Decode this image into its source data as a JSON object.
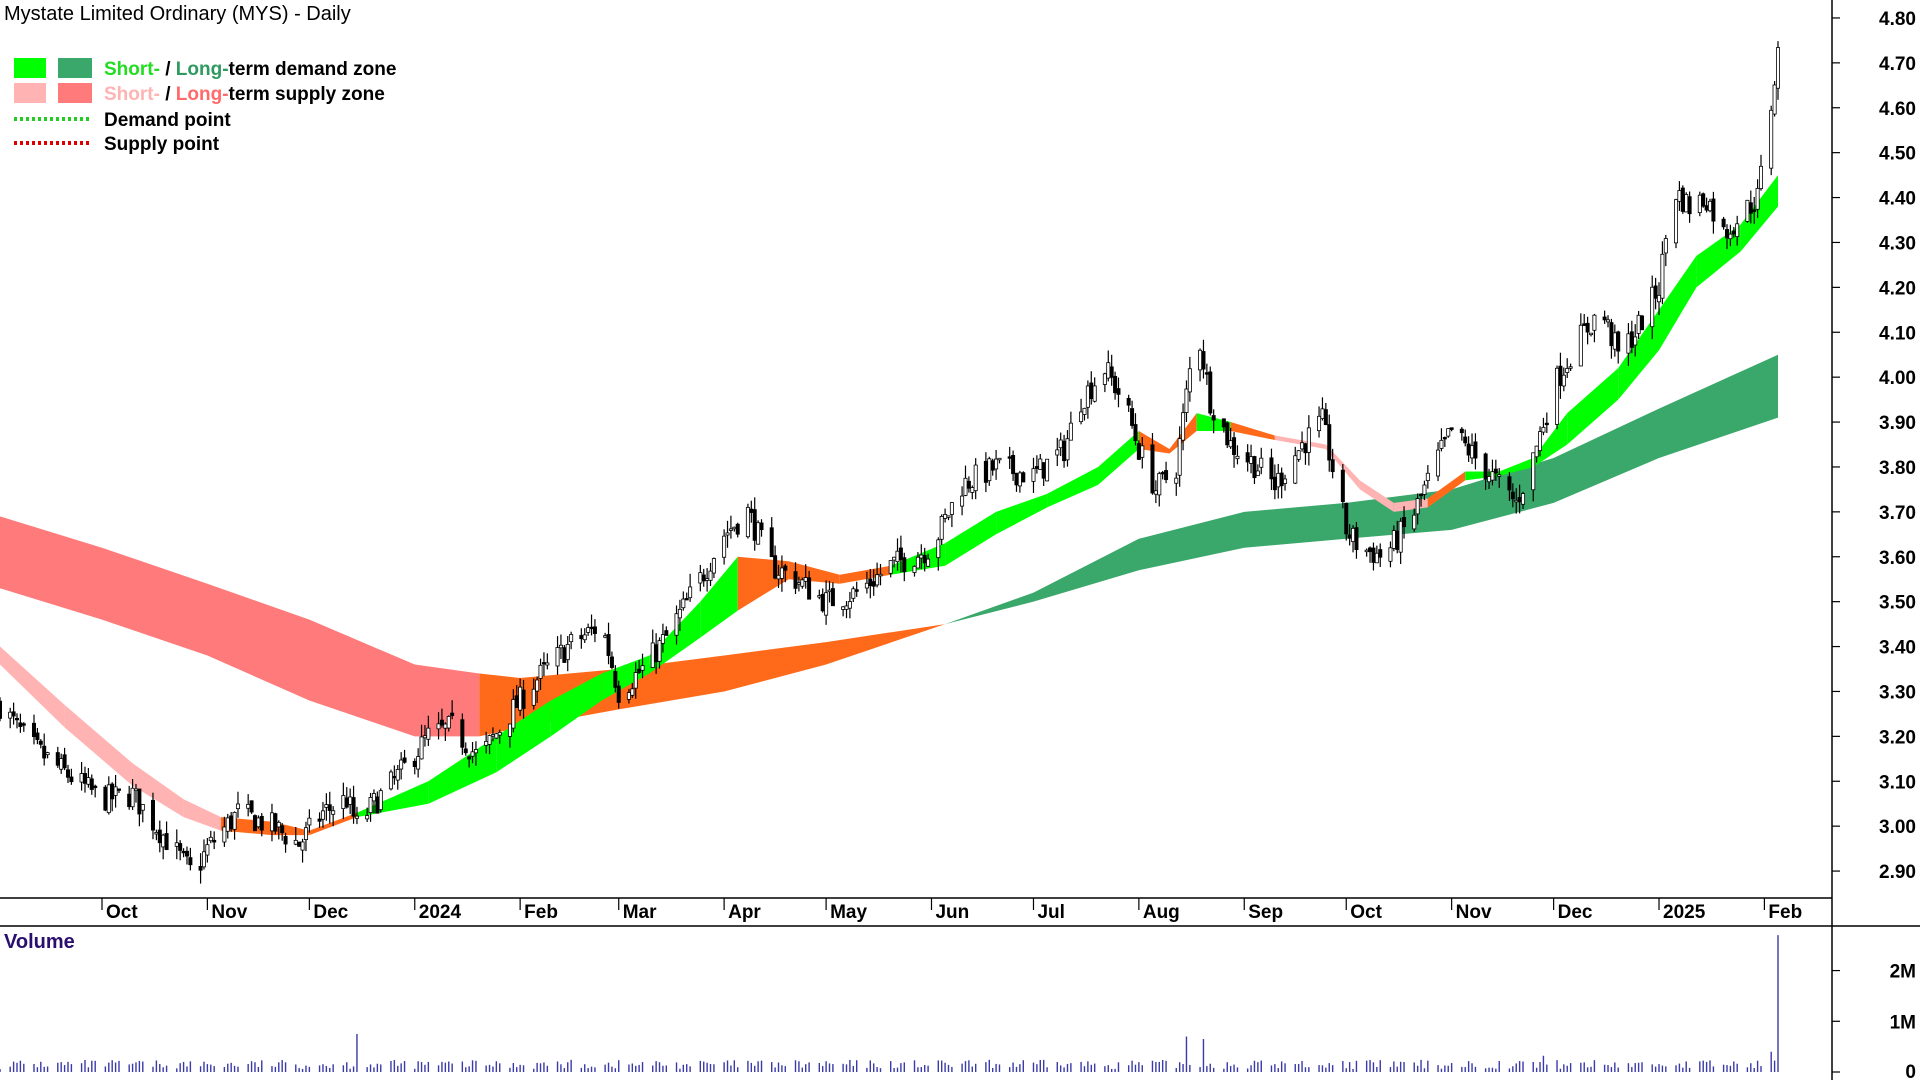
{
  "title": "Mystate Limited Ordinary (MYS) - Daily",
  "legend": {
    "demand_zone": {
      "short": "Short-",
      "sep": " / ",
      "long": "Long-",
      "rest": "term demand zone"
    },
    "supply_zone": {
      "short": "Short-",
      "sep": " / ",
      "long": "Long-",
      "rest": "term supply zone"
    },
    "demand_point": "Demand point",
    "supply_point": "Supply point"
  },
  "colors": {
    "short_demand": "#00ff00",
    "long_demand": "#3aa86b",
    "short_supply": "#ffb3b3",
    "long_supply": "#ff7a7a",
    "overlap": "#ff6a1a",
    "demand_point": "#22cc22",
    "supply_point": "#dd0000",
    "volume": "#3a3aa8"
  },
  "volume_panel": {
    "label": "Volume",
    "ticks": [
      "2M",
      "1M",
      "0"
    ],
    "tick_values": [
      2000000,
      1000000,
      0
    ],
    "max": 2800000
  },
  "chart_data": {
    "type": "candlestick",
    "ylim": [
      2.84,
      4.84
    ],
    "y_ticks": [
      2.9,
      3.0,
      3.1,
      3.2,
      3.3,
      3.4,
      3.5,
      3.6,
      3.7,
      3.8,
      3.9,
      4.0,
      4.1,
      4.2,
      4.3,
      4.4,
      4.5,
      4.6,
      4.7,
      4.8
    ],
    "y_tick_labels": [
      "2.90",
      "3.00",
      "3.10",
      "3.20",
      "3.30",
      "3.40",
      "3.50",
      "3.60",
      "3.70",
      "3.80",
      "3.90",
      "4.00",
      "4.10",
      "4.20",
      "4.30",
      "4.40",
      "4.50",
      "4.60",
      "4.70",
      "4.80"
    ],
    "x_month_labels": [
      "Oct",
      "Nov",
      "Dec",
      "2024",
      "Feb",
      "Mar",
      "Apr",
      "May",
      "Jun",
      "Jul",
      "Aug",
      "Sep",
      "Oct",
      "Nov",
      "Dec",
      "2025",
      "Feb"
    ],
    "x_month_dates": [
      "2023-10-01",
      "2023-11-01",
      "2023-12-01",
      "2024-01-01",
      "2024-02-01",
      "2024-03-01",
      "2024-04-01",
      "2024-05-01",
      "2024-06-01",
      "2024-07-01",
      "2024-08-01",
      "2024-09-01",
      "2024-10-01",
      "2024-11-01",
      "2024-12-01",
      "2025-01-01",
      "2025-02-01"
    ],
    "date_range": [
      "2023-09-01",
      "2025-02-05"
    ],
    "price_path": [
      [
        "2023-09-01",
        3.27
      ],
      [
        "2023-09-10",
        3.18
      ],
      [
        "2023-09-20",
        3.12
      ],
      [
        "2023-10-01",
        3.06
      ],
      [
        "2023-10-10",
        3.07
      ],
      [
        "2023-10-20",
        2.97
      ],
      [
        "2023-10-28",
        2.89
      ],
      [
        "2023-11-01",
        2.95
      ],
      [
        "2023-11-10",
        3.03
      ],
      [
        "2023-11-20",
        3.0
      ],
      [
        "2023-11-28",
        2.96
      ],
      [
        "2023-12-05",
        3.03
      ],
      [
        "2023-12-12",
        3.06
      ],
      [
        "2023-12-15",
        3.0
      ],
      [
        "2023-12-20",
        3.05
      ],
      [
        "2023-12-28",
        3.12
      ],
      [
        "2024-01-05",
        3.2
      ],
      [
        "2024-01-12",
        3.22
      ],
      [
        "2024-01-20",
        3.15
      ],
      [
        "2024-01-28",
        3.24
      ],
      [
        "2024-02-05",
        3.32
      ],
      [
        "2024-02-15",
        3.4
      ],
      [
        "2024-02-25",
        3.45
      ],
      [
        "2024-03-01",
        3.3
      ],
      [
        "2024-03-08",
        3.35
      ],
      [
        "2024-03-15",
        3.42
      ],
      [
        "2024-03-25",
        3.55
      ],
      [
        "2024-04-01",
        3.65
      ],
      [
        "2024-04-08",
        3.7
      ],
      [
        "2024-04-15",
        3.58
      ],
      [
        "2024-04-22",
        3.55
      ],
      [
        "2024-05-01",
        3.5
      ],
      [
        "2024-05-10",
        3.52
      ],
      [
        "2024-05-20",
        3.58
      ],
      [
        "2024-06-01",
        3.62
      ],
      [
        "2024-06-10",
        3.76
      ],
      [
        "2024-06-20",
        3.8
      ],
      [
        "2024-07-01",
        3.78
      ],
      [
        "2024-07-10",
        3.84
      ],
      [
        "2024-07-15",
        3.95
      ],
      [
        "2024-07-22",
        4.02
      ],
      [
        "2024-07-28",
        3.94
      ],
      [
        "2024-08-01",
        3.84
      ],
      [
        "2024-08-06",
        3.75
      ],
      [
        "2024-08-12",
        3.8
      ],
      [
        "2024-08-18",
        4.12
      ],
      [
        "2024-08-22",
        3.95
      ],
      [
        "2024-08-28",
        3.85
      ],
      [
        "2024-09-05",
        3.8
      ],
      [
        "2024-09-10",
        3.76
      ],
      [
        "2024-09-18",
        3.85
      ],
      [
        "2024-09-24",
        3.9
      ],
      [
        "2024-10-01",
        3.66
      ],
      [
        "2024-10-05",
        3.62
      ],
      [
        "2024-10-12",
        3.6
      ],
      [
        "2024-10-20",
        3.68
      ],
      [
        "2024-10-28",
        3.82
      ],
      [
        "2024-11-01",
        3.88
      ],
      [
        "2024-11-08",
        3.82
      ],
      [
        "2024-11-15",
        3.76
      ],
      [
        "2024-11-20",
        3.72
      ],
      [
        "2024-11-25",
        3.82
      ],
      [
        "2024-12-01",
        3.98
      ],
      [
        "2024-12-08",
        4.08
      ],
      [
        "2024-12-15",
        4.15
      ],
      [
        "2024-12-20",
        4.05
      ],
      [
        "2024-12-25",
        4.1
      ],
      [
        "2025-01-01",
        4.2
      ],
      [
        "2025-01-05",
        4.42
      ],
      [
        "2025-01-10",
        4.38
      ],
      [
        "2025-01-15",
        4.4
      ],
      [
        "2025-01-20",
        4.32
      ],
      [
        "2025-01-25",
        4.36
      ],
      [
        "2025-01-30",
        4.4
      ],
      [
        "2025-02-02",
        4.55
      ],
      [
        "2025-02-05",
        4.72
      ]
    ],
    "long_term_supply_zone": [
      [
        "2023-09-01",
        3.69,
        3.53
      ],
      [
        "2023-10-01",
        3.62,
        3.46
      ],
      [
        "2023-11-01",
        3.54,
        3.38
      ],
      [
        "2023-12-01",
        3.46,
        3.28
      ],
      [
        "2024-01-01",
        3.36,
        3.2
      ],
      [
        "2024-01-20",
        3.34,
        3.2
      ]
    ],
    "long_term_zone_overlap": [
      [
        "2024-01-20",
        3.34,
        3.2
      ],
      [
        "2024-02-01",
        3.33,
        3.22
      ],
      [
        "2024-03-01",
        3.35,
        3.26
      ],
      [
        "2024-04-01",
        3.38,
        3.3
      ],
      [
        "2024-05-01",
        3.41,
        3.36
      ],
      [
        "2024-06-05",
        3.45,
        3.45
      ]
    ],
    "long_term_demand_zone": [
      [
        "2024-06-05",
        3.45,
        3.45
      ],
      [
        "2024-07-01",
        3.52,
        3.5
      ],
      [
        "2024-08-01",
        3.64,
        3.57
      ],
      [
        "2024-09-01",
        3.7,
        3.62
      ],
      [
        "2024-10-01",
        3.72,
        3.64
      ],
      [
        "2024-11-01",
        3.75,
        3.66
      ],
      [
        "2024-12-01",
        3.82,
        3.72
      ],
      [
        "2025-01-01",
        3.93,
        3.82
      ],
      [
        "2025-02-05",
        4.05,
        3.91
      ]
    ],
    "short_term_zone": [
      [
        "2023-09-01",
        3.4,
        3.36,
        "supply"
      ],
      [
        "2023-09-20",
        3.27,
        3.22,
        "supply"
      ],
      [
        "2023-10-10",
        3.14,
        3.09,
        "supply"
      ],
      [
        "2023-10-25",
        3.06,
        3.02,
        "supply"
      ],
      [
        "2023-11-05",
        3.02,
        2.99,
        "overlap"
      ],
      [
        "2023-11-20",
        3.01,
        2.98,
        "overlap"
      ],
      [
        "2023-12-01",
        2.99,
        2.98,
        "overlap"
      ],
      [
        "2023-12-15",
        3.03,
        3.02,
        "demand"
      ],
      [
        "2024-01-05",
        3.1,
        3.05,
        "demand"
      ],
      [
        "2024-01-25",
        3.2,
        3.12,
        "demand"
      ],
      [
        "2024-02-10",
        3.28,
        3.2,
        "demand"
      ],
      [
        "2024-02-25",
        3.34,
        3.28,
        "demand"
      ],
      [
        "2024-03-10",
        3.38,
        3.34,
        "demand"
      ],
      [
        "2024-03-25",
        3.5,
        3.42,
        "demand"
      ],
      [
        "2024-04-05",
        3.6,
        3.48,
        "overlap"
      ],
      [
        "2024-04-20",
        3.59,
        3.55,
        "overlap"
      ],
      [
        "2024-05-05",
        3.56,
        3.54,
        "overlap"
      ],
      [
        "2024-05-20",
        3.58,
        3.56,
        "demand"
      ],
      [
        "2024-06-05",
        3.63,
        3.58,
        "demand"
      ],
      [
        "2024-06-20",
        3.7,
        3.65,
        "demand"
      ],
      [
        "2024-07-05",
        3.74,
        3.71,
        "demand"
      ],
      [
        "2024-07-20",
        3.8,
        3.76,
        "demand"
      ],
      [
        "2024-08-01",
        3.88,
        3.84,
        "overlap"
      ],
      [
        "2024-08-10",
        3.84,
        3.83,
        "overlap"
      ],
      [
        "2024-08-18",
        3.92,
        3.88,
        "demand"
      ],
      [
        "2024-08-28",
        3.9,
        3.88,
        "overlap"
      ],
      [
        "2024-09-10",
        3.87,
        3.86,
        "supply"
      ],
      [
        "2024-09-25",
        3.85,
        3.84,
        "supply"
      ],
      [
        "2024-10-05",
        3.77,
        3.75,
        "supply"
      ],
      [
        "2024-10-15",
        3.72,
        3.7,
        "supply"
      ],
      [
        "2024-10-25",
        3.73,
        3.71,
        "overlap"
      ],
      [
        "2024-11-05",
        3.79,
        3.77,
        "demand"
      ],
      [
        "2024-11-15",
        3.79,
        3.78,
        "demand"
      ],
      [
        "2024-11-25",
        3.82,
        3.8,
        "demand"
      ],
      [
        "2024-12-05",
        3.92,
        3.85,
        "demand"
      ],
      [
        "2024-12-20",
        4.02,
        3.95,
        "demand"
      ],
      [
        "2025-01-01",
        4.15,
        4.06,
        "demand"
      ],
      [
        "2025-01-12",
        4.27,
        4.2,
        "demand"
      ],
      [
        "2025-01-25",
        4.34,
        4.28,
        "demand"
      ],
      [
        "2025-02-05",
        4.45,
        4.38,
        "demand"
      ]
    ],
    "volume_spikes": [
      [
        "2023-12-15",
        750000
      ],
      [
        "2024-03-10",
        280000
      ],
      [
        "2024-08-15",
        700000
      ],
      [
        "2024-08-20",
        650000
      ],
      [
        "2024-11-28",
        320000
      ],
      [
        "2025-01-05",
        360000
      ],
      [
        "2025-02-03",
        400000
      ],
      [
        "2025-02-05",
        2700000
      ]
    ],
    "volume_baseline": 150000
  }
}
